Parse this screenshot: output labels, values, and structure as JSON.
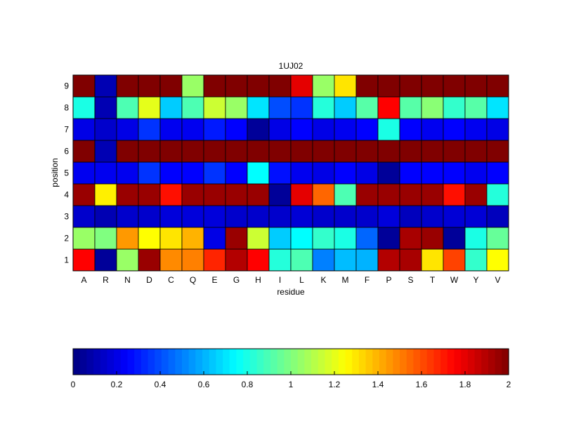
{
  "chart_data": {
    "type": "heatmap",
    "title": "1UJ02",
    "xlabel": "residue",
    "ylabel": "position",
    "x_categories": [
      "A",
      "R",
      "N",
      "D",
      "C",
      "Q",
      "E",
      "G",
      "H",
      "I",
      "L",
      "K",
      "M",
      "F",
      "P",
      "S",
      "T",
      "W",
      "Y",
      "V"
    ],
    "y_categories": [
      "1",
      "2",
      "3",
      "4",
      "5",
      "6",
      "7",
      "8",
      "9"
    ],
    "colormap": "jet",
    "clim": [
      0,
      2
    ],
    "colorbar": {
      "location": "bottom",
      "ticks": [
        0,
        0.2,
        0.4,
        0.6,
        0.8,
        1,
        1.2,
        1.4,
        1.6,
        1.8,
        2
      ],
      "tick_labels": [
        "0",
        "0.2",
        "0.4",
        "0.6",
        "0.8",
        "1",
        "1.2",
        "1.4",
        "1.6",
        "1.8",
        "2"
      ]
    },
    "values": [
      [
        1.75,
        0.05,
        1.05,
        1.95,
        1.48,
        1.5,
        1.68,
        1.9,
        1.75,
        0.82,
        0.9,
        0.5,
        0.62,
        0.6,
        1.9,
        1.92,
        1.3,
        1.62,
        0.85,
        1.25
      ],
      [
        1.05,
        1.0,
        1.45,
        1.25,
        1.3,
        1.4,
        0.2,
        1.95,
        1.15,
        0.65,
        0.75,
        0.85,
        0.8,
        0.45,
        0.05,
        1.92,
        1.95,
        0.05,
        0.8,
        0.95
      ],
      [
        0.15,
        0.1,
        0.15,
        0.15,
        0.18,
        0.18,
        0.18,
        0.15,
        0.15,
        0.15,
        0.17,
        0.15,
        0.15,
        0.15,
        0.18,
        0.12,
        0.15,
        0.17,
        0.17,
        0.12
      ],
      [
        1.95,
        1.28,
        1.95,
        1.95,
        1.72,
        1.95,
        1.95,
        1.95,
        1.95,
        0.05,
        1.8,
        1.55,
        0.9,
        1.95,
        1.95,
        1.95,
        1.95,
        1.72,
        1.95,
        0.82
      ],
      [
        0.22,
        0.22,
        0.22,
        0.35,
        0.25,
        0.25,
        0.35,
        0.25,
        0.75,
        0.28,
        0.22,
        0.2,
        0.25,
        0.2,
        0.05,
        0.25,
        0.25,
        0.25,
        0.22,
        0.25
      ],
      [
        2.0,
        0.1,
        2.0,
        2.0,
        2.0,
        2.0,
        2.0,
        2.0,
        2.0,
        2.0,
        2.0,
        2.0,
        2.0,
        2.0,
        2.0,
        2.0,
        2.0,
        2.0,
        2.0,
        2.0
      ],
      [
        0.2,
        0.15,
        0.2,
        0.35,
        0.22,
        0.22,
        0.3,
        0.25,
        0.05,
        0.2,
        0.25,
        0.2,
        0.22,
        0.25,
        0.8,
        0.25,
        0.22,
        0.25,
        0.22,
        0.2
      ],
      [
        0.8,
        0.1,
        0.9,
        1.2,
        0.65,
        0.9,
        1.15,
        1.05,
        0.7,
        0.4,
        0.35,
        0.82,
        0.65,
        0.92,
        1.75,
        0.92,
        1.02,
        0.85,
        0.92,
        0.7
      ],
      [
        2.0,
        0.1,
        2.0,
        2.0,
        2.0,
        1.05,
        2.0,
        2.0,
        2.0,
        2.0,
        1.8,
        1.05,
        1.3,
        2.0,
        2.0,
        2.0,
        2.0,
        2.0,
        2.0,
        2.0
      ]
    ]
  }
}
